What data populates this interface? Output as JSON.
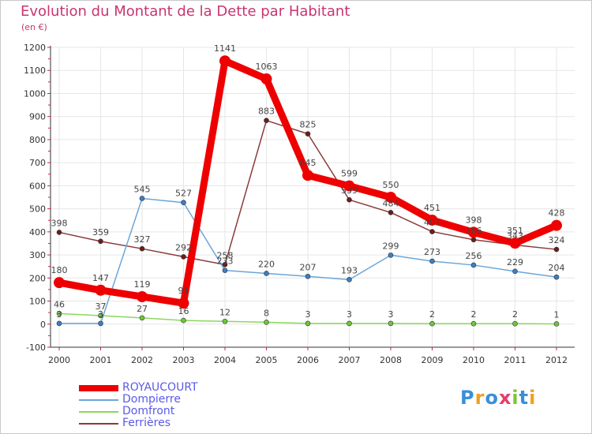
{
  "chart_data": {
    "type": "line",
    "title": "Evolution du Montant de la Dette par Habitant",
    "subtitle": "(en €)",
    "x": [
      "2000",
      "2001",
      "2002",
      "2003",
      "2004",
      "2005",
      "2006",
      "2007",
      "2008",
      "2009",
      "2010",
      "2011",
      "2012"
    ],
    "y_ticks": [
      -100,
      0,
      100,
      200,
      300,
      400,
      500,
      600,
      700,
      800,
      900,
      1000,
      1100,
      1200
    ],
    "ylim": [
      -100,
      1200
    ],
    "grid": true,
    "legend_position": "bottom-left",
    "series": [
      {
        "name": "Ferrières",
        "color": "#8b3a3a",
        "marker": "#6b1c1c",
        "values": [
          398,
          359,
          327,
          292,
          258,
          883,
          825,
          539,
          484,
          401,
          366,
          343,
          324
        ],
        "labels": [
          "398",
          "359",
          "327",
          "292",
          "258",
          "883",
          "825",
          "539",
          "484",
          "401",
          "366",
          "343",
          "324"
        ]
      },
      {
        "name": "Dompierre",
        "color": "#6aa6d8",
        "marker": "#3c7fc4",
        "values": [
          3,
          3,
          545,
          527,
          233,
          220,
          207,
          193,
          299,
          273,
          256,
          229,
          204
        ],
        "labels": [
          "3",
          "3",
          "545",
          "527",
          "233",
          "220",
          "207",
          "193",
          "299",
          "273",
          "256",
          "229",
          "204"
        ]
      },
      {
        "name": "Domfront",
        "color": "#8ad85c",
        "marker": "#6cc83a",
        "values": [
          46,
          37,
          27,
          16,
          12,
          8,
          3,
          3,
          3,
          2,
          2,
          2,
          1
        ],
        "labels": [
          "46",
          "37",
          "27",
          "16",
          "12",
          "8",
          "3",
          "3",
          "3",
          "2",
          "2",
          "2",
          "1"
        ]
      },
      {
        "name": "ROYAUCOURT",
        "color": "#ee0000",
        "marker": "#ee0000",
        "values": [
          180,
          147,
          119,
          91,
          1141,
          1063,
          645,
          599,
          550,
          451,
          398,
          351,
          428
        ],
        "labels": [
          "180",
          "147",
          "119",
          "91",
          "1141",
          "1063",
          "645",
          "599",
          "550",
          "451",
          "398",
          "351",
          "428"
        ]
      }
    ]
  },
  "legend": {
    "items": [
      {
        "label": "ROYAUCOURT",
        "color": "#ee0000"
      },
      {
        "label": "Dompierre",
        "color": "#6aa6d8"
      },
      {
        "label": "Domfront",
        "color": "#8ad85c"
      },
      {
        "label": "Ferrières",
        "color": "#8b3a3a"
      }
    ]
  },
  "logo": {
    "text": "Proxiti",
    "letters": [
      {
        "ch": "P",
        "color": "#3a8fd8"
      },
      {
        "ch": "r",
        "color": "#f0a020"
      },
      {
        "ch": "o",
        "color": "#3a8fd8"
      },
      {
        "ch": "x",
        "color": "#e83c6c"
      },
      {
        "ch": "i",
        "color": "#7cc43a"
      },
      {
        "ch": "t",
        "color": "#3a8fd8"
      },
      {
        "ch": "i",
        "color": "#f0a020"
      }
    ]
  }
}
